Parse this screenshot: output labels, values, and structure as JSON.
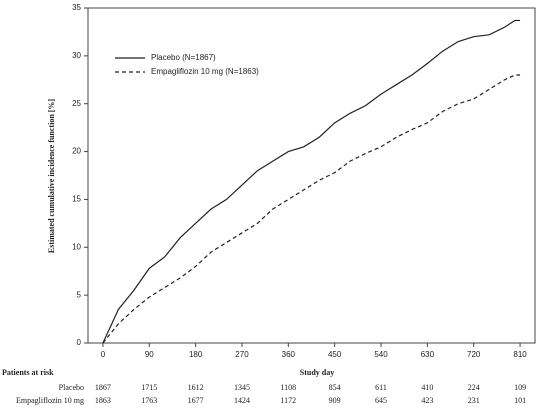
{
  "chart_data": {
    "type": "line",
    "ylabel": "Estimated cumulative incidence function [%]",
    "xlabel": "Study day",
    "xlim": [
      -29,
      839
    ],
    "xticks": [
      0,
      90,
      180,
      270,
      360,
      450,
      540,
      630,
      720,
      810
    ],
    "ylim": [
      0,
      35
    ],
    "yticks": [
      0,
      5,
      10,
      15,
      20,
      25,
      30,
      35
    ],
    "legend_position": "upper left",
    "series": [
      {
        "name": "Placebo (N=1867)",
        "color": "#222222",
        "linestyle": "solid",
        "x": [
          0,
          30,
          60,
          90,
          120,
          150,
          180,
          210,
          240,
          270,
          300,
          330,
          360,
          390,
          420,
          450,
          480,
          510,
          540,
          570,
          600,
          630,
          660,
          690,
          720,
          750,
          780,
          800,
          810
        ],
        "values": [
          0,
          3.5,
          5.5,
          7.8,
          9,
          11,
          12.5,
          14,
          15,
          16.5,
          18,
          19,
          20,
          20.5,
          21.5,
          23,
          24,
          24.8,
          26,
          27,
          28,
          29.2,
          30.5,
          31.5,
          32,
          32.2,
          33,
          33.7,
          33.7
        ]
      },
      {
        "name": "Empagliflozin 10 mg (N=1863)",
        "color": "#222222",
        "linestyle": "dashed",
        "x": [
          0,
          30,
          60,
          90,
          120,
          150,
          180,
          210,
          240,
          270,
          300,
          330,
          360,
          390,
          420,
          450,
          480,
          510,
          540,
          570,
          600,
          630,
          660,
          690,
          720,
          750,
          780,
          800,
          810
        ],
        "values": [
          0,
          2,
          3.5,
          4.8,
          5.8,
          6.8,
          8,
          9.5,
          10.5,
          11.5,
          12.5,
          14,
          15,
          16,
          17,
          17.8,
          19,
          19.8,
          20.5,
          21.5,
          22.3,
          23,
          24.2,
          25,
          25.5,
          26.5,
          27.5,
          28,
          28
        ]
      }
    ],
    "risk_table": {
      "title": "Patients at risk",
      "rows": [
        {
          "name": "Placebo",
          "values": [
            1867,
            1715,
            1612,
            1345,
            1108,
            854,
            611,
            410,
            224,
            109
          ]
        },
        {
          "name": "Empagliflozin 10 mg",
          "values": [
            1863,
            1763,
            1677,
            1424,
            1172,
            909,
            645,
            423,
            231,
            101
          ]
        }
      ]
    }
  }
}
